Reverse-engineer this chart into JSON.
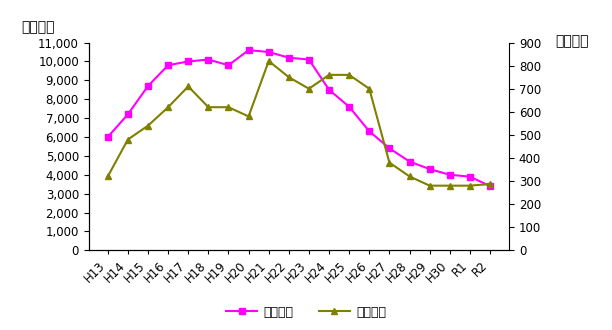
{
  "categories": [
    "H13",
    "H14",
    "H15",
    "H16",
    "H17",
    "H18",
    "H19",
    "H20",
    "H21",
    "H22",
    "H23",
    "H24",
    "H25",
    "H26",
    "H27",
    "H28",
    "H29",
    "H30",
    "R1",
    "R2"
  ],
  "applicants": [
    6000,
    7200,
    8700,
    9800,
    10000,
    10100,
    9800,
    10600,
    10500,
    10200,
    10100,
    8500,
    7600,
    6300,
    5400,
    4700,
    4300,
    4000,
    3900,
    3401
  ],
  "passers": [
    320,
    480,
    540,
    620,
    710,
    620,
    620,
    580,
    820,
    750,
    700,
    760,
    760,
    700,
    380,
    320,
    280,
    280,
    280,
    287
  ],
  "applicants_color": "#ff00ff",
  "passers_color": "#808000",
  "ylabel_left": "志願者数",
  "ylabel_right": "合格者数",
  "ylim_left": [
    0,
    11000
  ],
  "ylim_right": [
    0,
    900
  ],
  "yticks_left": [
    0,
    1000,
    2000,
    3000,
    4000,
    5000,
    6000,
    7000,
    8000,
    9000,
    10000,
    11000
  ],
  "yticks_right": [
    0,
    100,
    200,
    300,
    400,
    500,
    600,
    700,
    800,
    900
  ],
  "legend_applicants": "志願者数",
  "legend_passers": "合格者数",
  "bg_color": "#ffffff",
  "label_fontsize": 10,
  "tick_fontsize": 8.5,
  "legend_fontsize": 9
}
